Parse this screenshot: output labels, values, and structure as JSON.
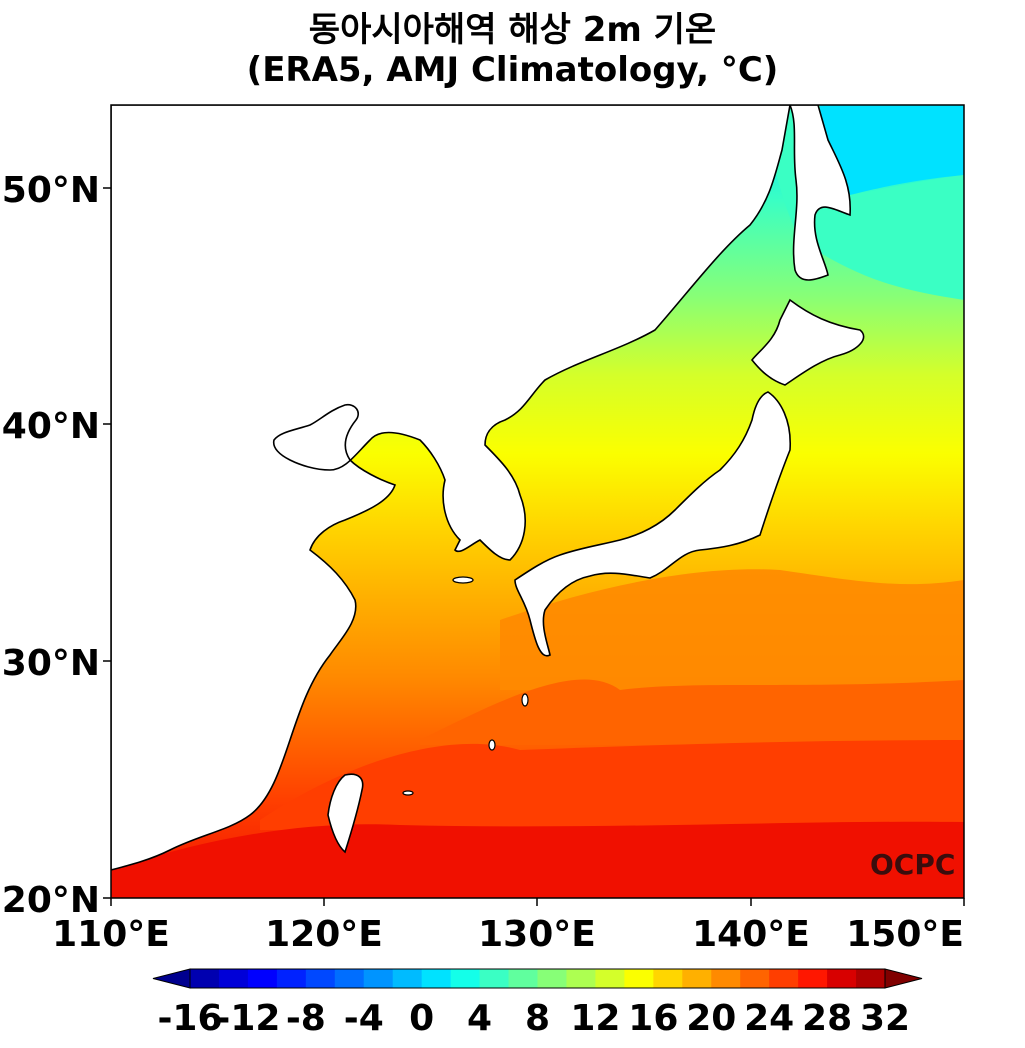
{
  "title": {
    "line1": "동아시아해역 해상 2m 기온",
    "line2": "(ERA5, AMJ Climatology, °C)"
  },
  "map": {
    "lon_range": [
      110,
      150
    ],
    "lat_range": [
      20,
      53.5
    ],
    "lon_ticks": [
      "110°E",
      "120°E",
      "130°E",
      "140°E",
      "150°E"
    ],
    "lat_ticks": [
      "20°N",
      "30°N",
      "40°N",
      "50°N"
    ],
    "watermark": "OCPC",
    "land_color": "#ffffff",
    "coast_color": "#000000"
  },
  "colorbar": {
    "labels": [
      "-16",
      "-12",
      "-8",
      "-4",
      "0",
      "4",
      "8",
      "12",
      "16",
      "20",
      "24",
      "28",
      "32"
    ],
    "levels": [
      -16,
      -14,
      -12,
      -10,
      -8,
      -6,
      -4,
      -2,
      0,
      2,
      4,
      6,
      8,
      10,
      12,
      14,
      16,
      18,
      20,
      22,
      24,
      26,
      28,
      30,
      32
    ],
    "under_color": "#00008f",
    "over_color": "#800000",
    "colors": [
      "#0000b0",
      "#0000d8",
      "#0000ff",
      "#0022ff",
      "#0048ff",
      "#006eff",
      "#0094ff",
      "#00bbff",
      "#00e2ff",
      "#14ffe9",
      "#3affc4",
      "#60ff9e",
      "#87ff77",
      "#adff51",
      "#d4ff2a",
      "#fbff00",
      "#ffd600",
      "#ffb000",
      "#ff8a00",
      "#ff6400",
      "#ff3e00",
      "#ff1700",
      "#d80000",
      "#b00000"
    ]
  }
}
